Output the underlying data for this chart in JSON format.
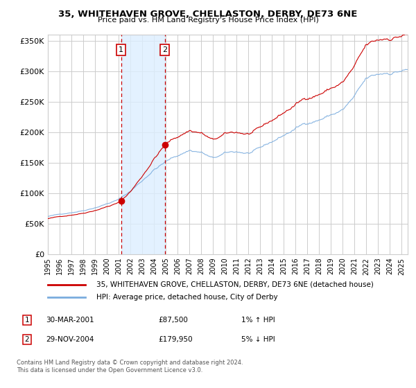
{
  "title": "35, WHITEHAVEN GROVE, CHELLASTON, DERBY, DE73 6NE",
  "subtitle": "Price paid vs. HM Land Registry's House Price Index (HPI)",
  "legend_line1": "35, WHITEHAVEN GROVE, CHELLASTON, DERBY, DE73 6NE (detached house)",
  "legend_line2": "HPI: Average price, detached house, City of Derby",
  "sale1_date": 2001.21,
  "sale1_price": 87500,
  "sale1_label": "1",
  "sale1_text": "30-MAR-2001",
  "sale1_amount": "£87,500",
  "sale1_hpi": "1% ↑ HPI",
  "sale2_date": 2004.91,
  "sale2_price": 179950,
  "sale2_label": "2",
  "sale2_text": "29-NOV-2004",
  "sale2_amount": "£179,950",
  "sale2_hpi": "5% ↓ HPI",
  "ylim": [
    0,
    360000
  ],
  "xlim": [
    1995.0,
    2025.5
  ],
  "yticks": [
    0,
    50000,
    100000,
    150000,
    200000,
    250000,
    300000,
    350000
  ],
  "ytick_labels": [
    "£0",
    "£50K",
    "£100K",
    "£150K",
    "£200K",
    "£250K",
    "£300K",
    "£350K"
  ],
  "xticks": [
    1995,
    1996,
    1997,
    1998,
    1999,
    2000,
    2001,
    2002,
    2003,
    2004,
    2005,
    2006,
    2007,
    2008,
    2009,
    2010,
    2011,
    2012,
    2013,
    2014,
    2015,
    2016,
    2017,
    2018,
    2019,
    2020,
    2021,
    2022,
    2023,
    2024,
    2025
  ],
  "background_color": "#ffffff",
  "plot_bg": "#ffffff",
  "grid_color": "#cccccc",
  "shade_color": "#ddeeff",
  "red_color": "#cc0000",
  "blue_color": "#7aacde",
  "footnote": "Contains HM Land Registry data © Crown copyright and database right 2024.\nThis data is licensed under the Open Government Licence v3.0."
}
